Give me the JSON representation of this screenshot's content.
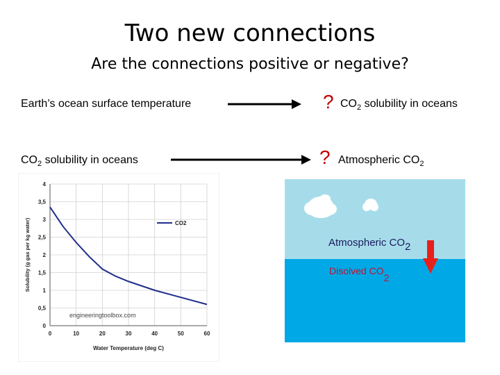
{
  "slide": {
    "title": "Two new connections",
    "subtitle": "Are the connections positive or negative?"
  },
  "connections": [
    {
      "from_label": "Earth’s ocean surface temperature",
      "question": "?",
      "to_main": "CO",
      "to_sub": "2",
      "to_rest": " solubility in oceans"
    },
    {
      "from_main": "CO",
      "from_sub": "2",
      "from_rest": " solubility in oceans",
      "question": "?",
      "to_main": "Atmospheric CO",
      "to_sub": "2"
    }
  ],
  "ocean_diagram": {
    "atmosphere_main": "Atmospheric CO",
    "atmosphere_sub": "2",
    "dissolved_main": "Disolved  CO",
    "dissolved_sub": "2",
    "sky_color": "#a6dcea",
    "water_color": "#00a8e6",
    "arrow_color": "#e8201c",
    "icons": [
      "cloud-icon",
      "cloud-icon",
      "down-arrow-icon"
    ]
  },
  "chart_data": {
    "type": "line",
    "xlabel": "Water Temperature (deg C)",
    "ylabel": "Solubility (g gas per kg water)",
    "xlim": [
      0,
      60
    ],
    "ylim": [
      0,
      4
    ],
    "x_ticks": [
      "0",
      "10",
      "20",
      "30",
      "40",
      "50",
      "60"
    ],
    "y_ticks": [
      "0",
      "0,5",
      "1",
      "1,5",
      "2",
      "2,5",
      "3",
      "3,5",
      "4"
    ],
    "grid": true,
    "legend": "top-right",
    "watermark": "engineeringtoolbox.com",
    "series": [
      {
        "name": "CO2",
        "color": "#1f2d8a",
        "x": [
          0,
          5,
          10,
          15,
          20,
          25,
          30,
          40,
          50,
          60
        ],
        "values": [
          3.35,
          2.8,
          2.35,
          1.95,
          1.6,
          1.4,
          1.25,
          1.0,
          0.8,
          0.6
        ]
      }
    ]
  }
}
